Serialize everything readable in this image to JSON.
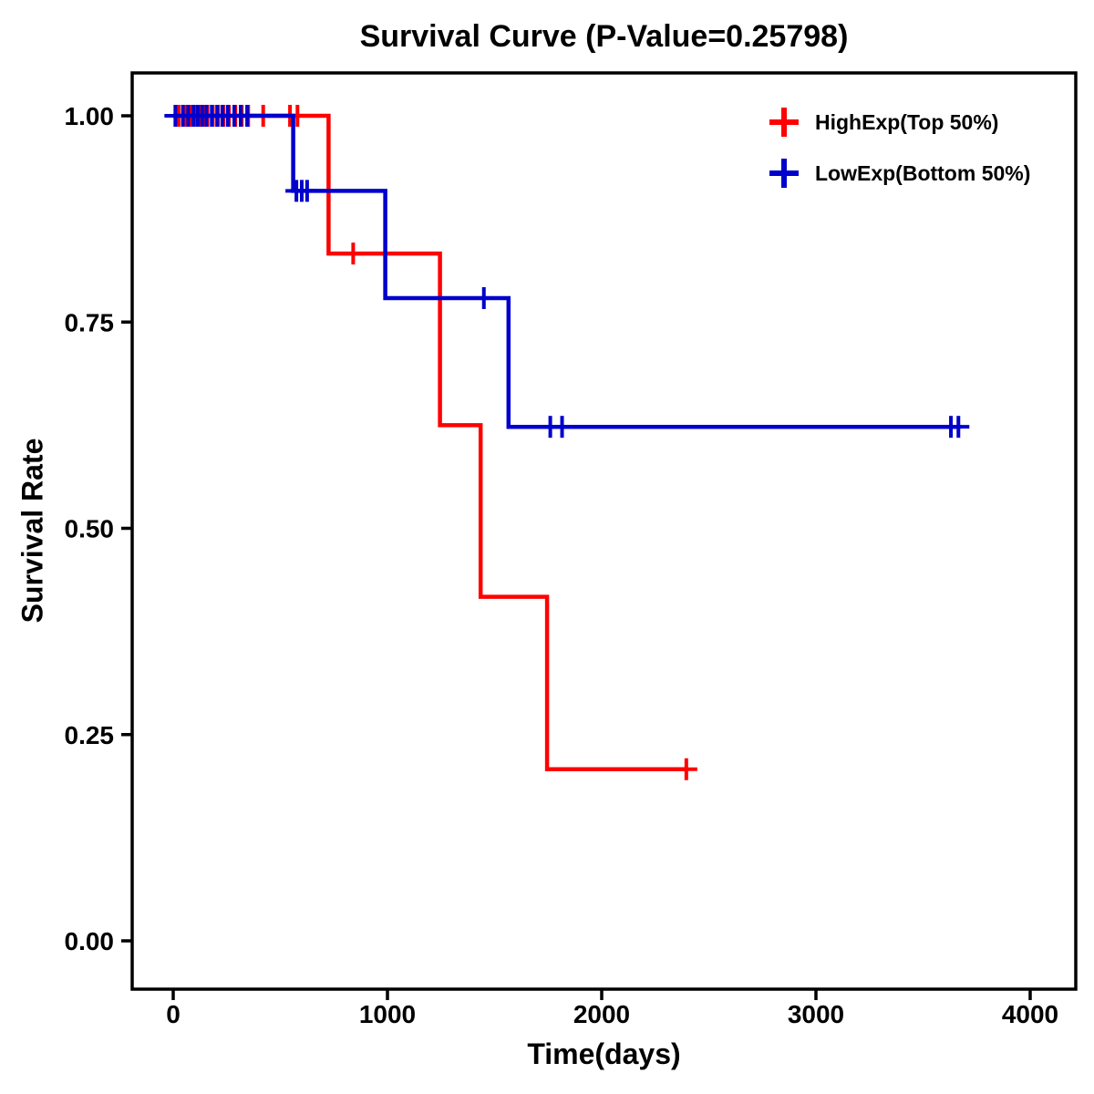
{
  "chart_data": {
    "type": "line",
    "subtype": "kaplan_meier_step",
    "title": "Survival Curve (P-Value=0.25798)",
    "p_value": "0.25798",
    "xlabel": "Time(days)",
    "ylabel": "Survival Rate",
    "xticks": [
      0,
      1000,
      2000,
      3000,
      4000
    ],
    "yticks": [
      0,
      0.25,
      0.5,
      0.75,
      1
    ],
    "xlim": [
      -190,
      4210
    ],
    "ylim": [
      -0.06,
      1.05
    ],
    "grid": false,
    "legend_position": "top-right",
    "colors": {
      "high_exp": "#FF0000",
      "low_exp": "#0000CD",
      "axis": "#000000",
      "background": "#FFFFFF"
    },
    "series": [
      {
        "name": "HighExp(Top 50%)",
        "color": "#FF0000",
        "steps": [
          [
            0,
            1.0
          ],
          [
            725,
            1.0
          ],
          [
            725,
            0.833
          ],
          [
            1245,
            0.833
          ],
          [
            1245,
            0.625
          ],
          [
            1435,
            0.625
          ],
          [
            1435,
            0.417
          ],
          [
            1745,
            0.417
          ],
          [
            1745,
            0.208
          ],
          [
            2400,
            0.208
          ]
        ],
        "censor_marks": [
          [
            25,
            1.0
          ],
          [
            55,
            1.0
          ],
          [
            80,
            1.0
          ],
          [
            100,
            1.0
          ],
          [
            120,
            1.0
          ],
          [
            140,
            1.0
          ],
          [
            160,
            1.0
          ],
          [
            185,
            1.0
          ],
          [
            210,
            1.0
          ],
          [
            235,
            1.0
          ],
          [
            260,
            1.0
          ],
          [
            290,
            1.0
          ],
          [
            320,
            1.0
          ],
          [
            350,
            1.0
          ],
          [
            420,
            1.0
          ],
          [
            545,
            1.0
          ],
          [
            580,
            1.0
          ],
          [
            840,
            0.833
          ],
          [
            2395,
            0.208
          ]
        ]
      },
      {
        "name": "LowExp(Bottom 50%)",
        "color": "#0000CD",
        "steps": [
          [
            0,
            1.0
          ],
          [
            560,
            1.0
          ],
          [
            560,
            0.909
          ],
          [
            990,
            0.909
          ],
          [
            990,
            0.779
          ],
          [
            1565,
            0.779
          ],
          [
            1565,
            0.623
          ],
          [
            3665,
            0.623
          ]
        ],
        "censor_marks": [
          [
            10,
            1.0
          ],
          [
            45,
            1.0
          ],
          [
            70,
            1.0
          ],
          [
            95,
            1.0
          ],
          [
            115,
            1.0
          ],
          [
            135,
            1.0
          ],
          [
            155,
            1.0
          ],
          [
            180,
            1.0
          ],
          [
            205,
            1.0
          ],
          [
            230,
            1.0
          ],
          [
            255,
            1.0
          ],
          [
            285,
            1.0
          ],
          [
            315,
            1.0
          ],
          [
            345,
            1.0
          ],
          [
            575,
            0.909
          ],
          [
            600,
            0.909
          ],
          [
            625,
            0.909
          ],
          [
            1450,
            0.779
          ],
          [
            1760,
            0.623
          ],
          [
            1815,
            0.623
          ],
          [
            3630,
            0.623
          ],
          [
            3665,
            0.623
          ]
        ]
      }
    ]
  }
}
